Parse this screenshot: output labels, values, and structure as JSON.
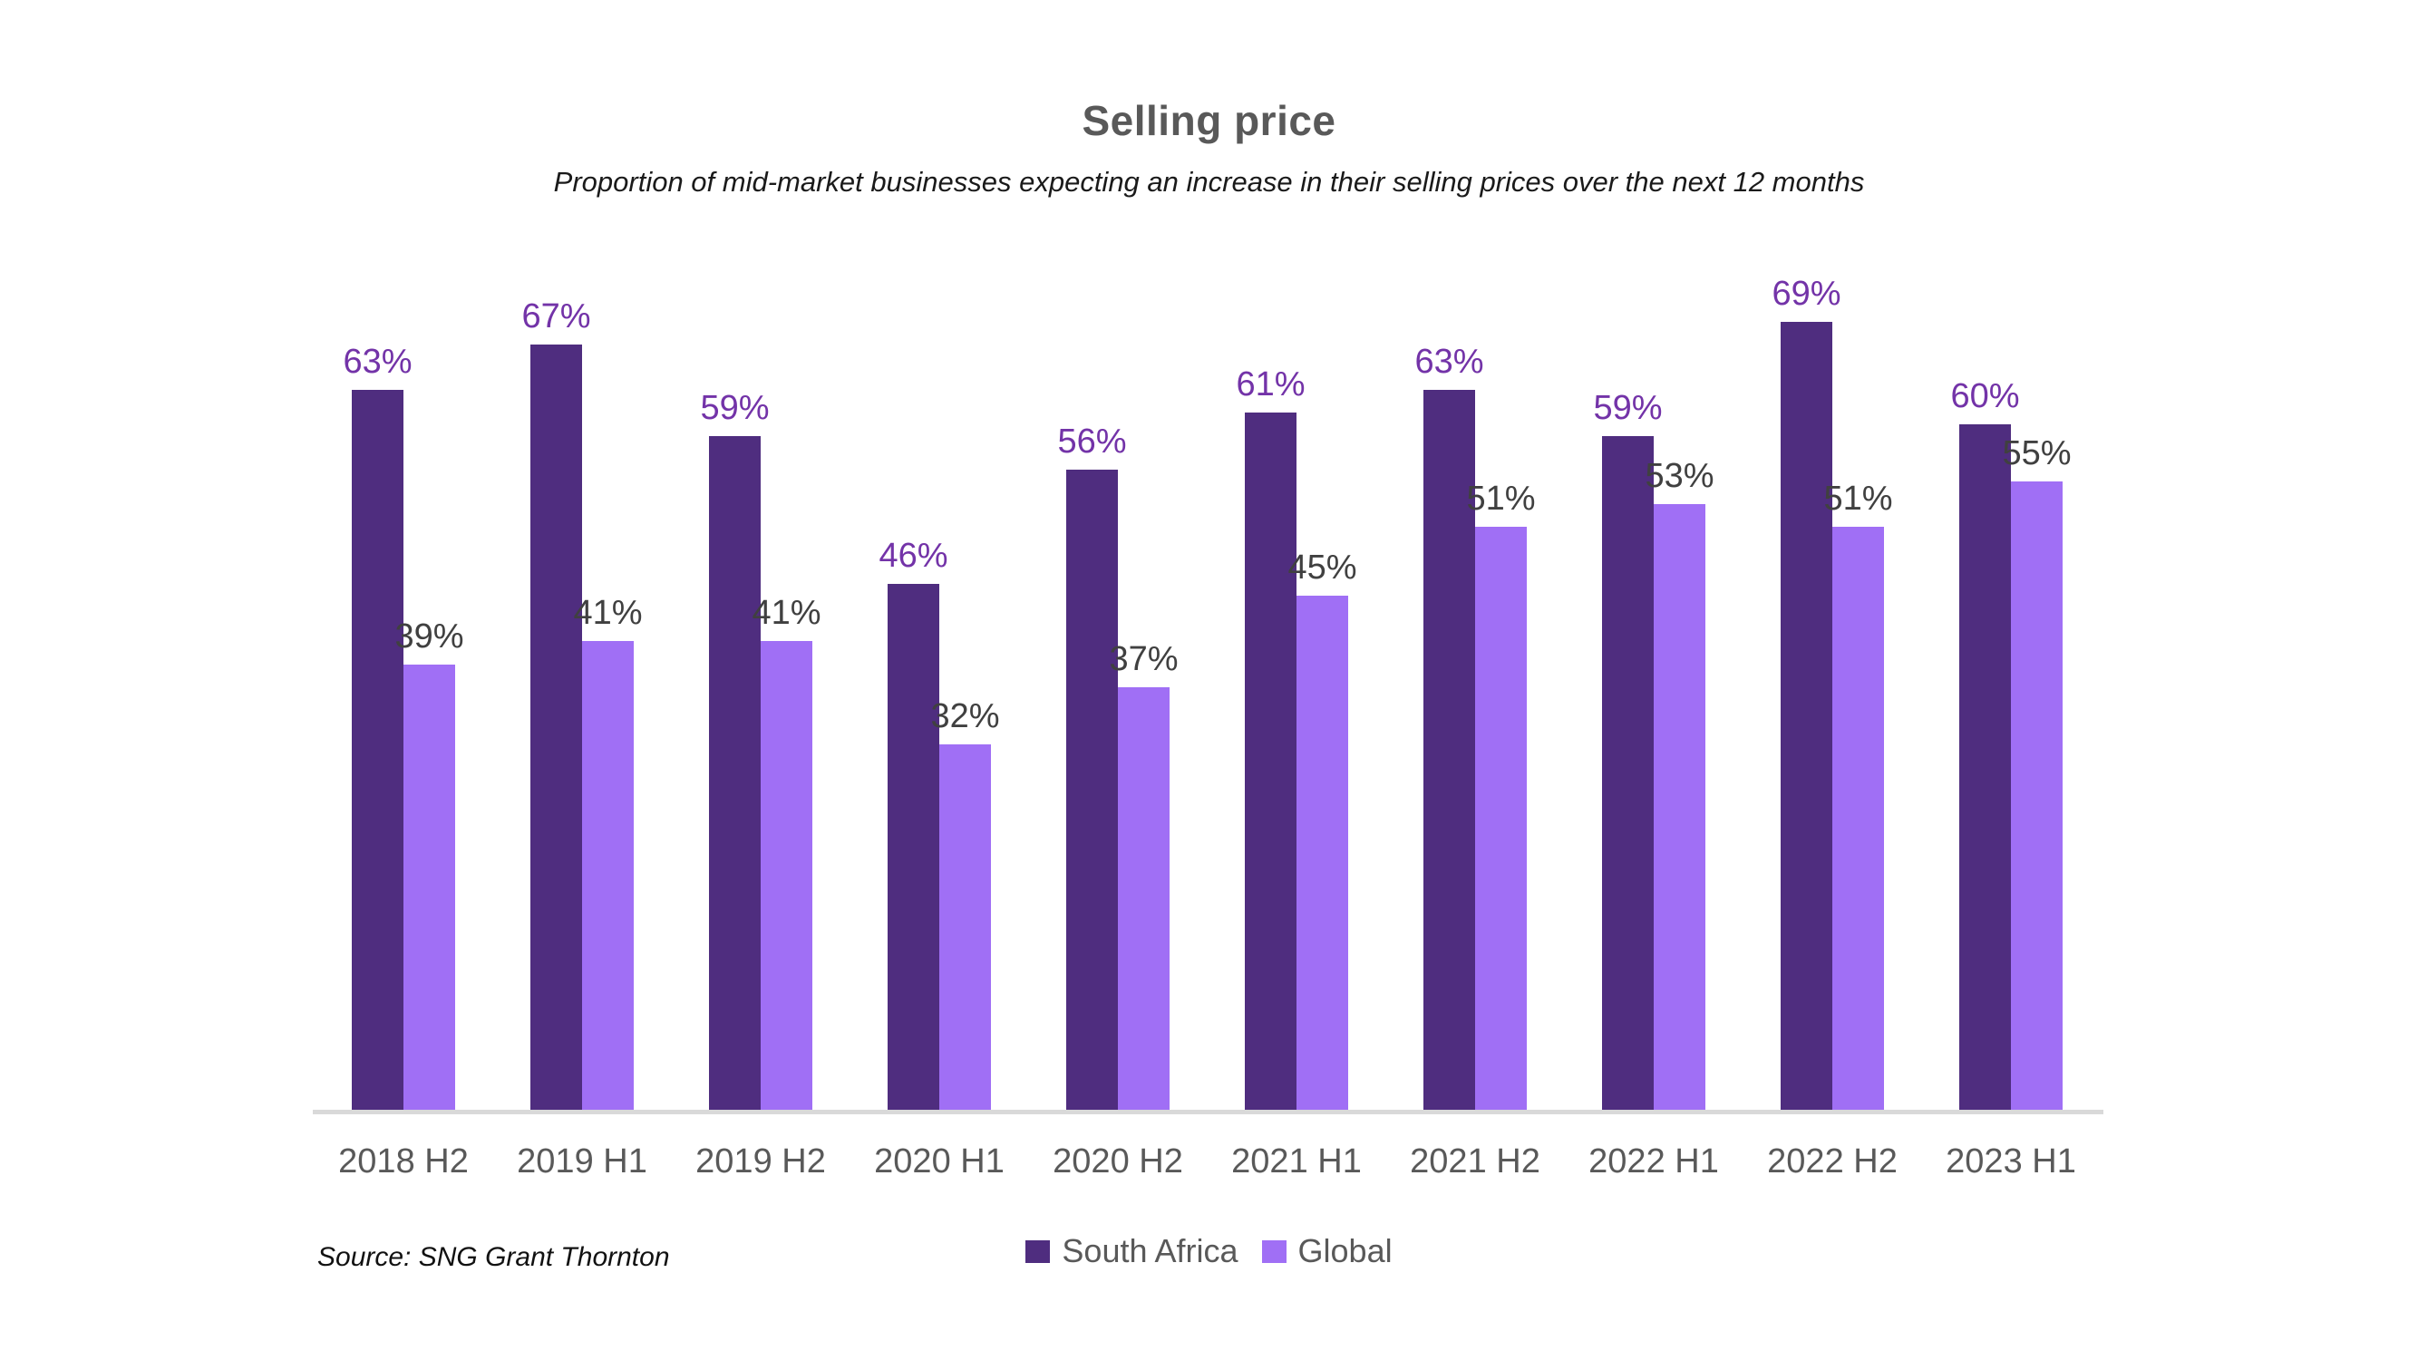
{
  "page": {
    "background": "#ffffff"
  },
  "header": {
    "title": "Selling price",
    "subtitle": "Proportion of mid-market businesses expecting an increase in their selling prices over the next 12 months"
  },
  "footer": {
    "source": "Source: SNG Grant Thornton"
  },
  "colors": {
    "south_africa_bar": "#4F2D7F",
    "global_bar": "#A06FF5",
    "south_africa_value_label": "#7333A8",
    "global_value_label": "#404040",
    "axis_line": "#D9D9D9",
    "tick_label": "#595959",
    "title_gray": "#595959"
  },
  "chart_data": {
    "type": "bar",
    "title": "Selling price",
    "subtitle": "Proportion of mid-market businesses expecting an increase in their selling prices over the next 12 months",
    "categories": [
      "2018 H2",
      "2019 H1",
      "2019 H2",
      "2020 H1",
      "2020 H2",
      "2021 H1",
      "2021 H2",
      "2022 H1",
      "2022 H2",
      "2023 H1"
    ],
    "series": [
      {
        "name": "South Africa",
        "color": "#4F2D7F",
        "label_color": "#7333A8",
        "values": [
          63,
          67,
          59,
          46,
          56,
          61,
          63,
          59,
          69,
          60
        ]
      },
      {
        "name": "Global",
        "color": "#A06FF5",
        "label_color": "#404040",
        "values": [
          39,
          41,
          41,
          32,
          37,
          45,
          51,
          53,
          51,
          55
        ]
      }
    ],
    "value_suffix": "%",
    "xlabel": "",
    "ylabel": "",
    "ylim": [
      0,
      100
    ],
    "grid": false,
    "legend_position": "bottom",
    "data_labels": true
  }
}
